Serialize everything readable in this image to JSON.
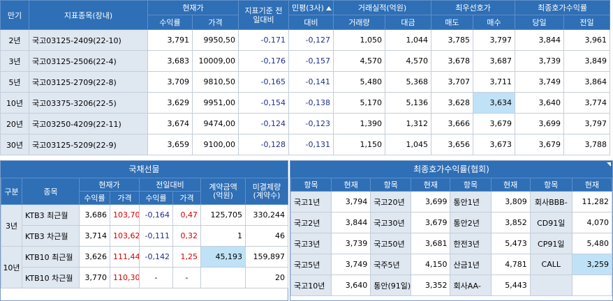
{
  "main_table": {
    "headers": {
      "maturity": "만기",
      "issue": "지표종목(장내)",
      "current": "현재가",
      "yield": "수익률",
      "price": "가격",
      "vs_prev": "지표기준 전일대비",
      "private": "민평(3사)",
      "private_diff": "대비",
      "volume": "거래실적(억원)",
      "vol_qty": "거래량",
      "vol_amt": "대금",
      "best_quote": "최우선호가",
      "sell": "매도",
      "buy": "매수",
      "final_yield": "최종호가수익률",
      "today": "당일",
      "prev_day": "전일"
    },
    "rows": [
      {
        "mat": "2년",
        "name": "국고03125-2409(22-10)",
        "yield": "3,791",
        "price": "9950,50",
        "diff": "-0,171",
        "pdiff": "-0,127",
        "qty": "1,050",
        "amt": "1,044",
        "sell": "3,785",
        "buy": "3,797",
        "today": "3,844",
        "prev": "3,961"
      },
      {
        "mat": "3년",
        "name": "국고03125-2506(22-4)",
        "yield": "3,683",
        "price": "10009,00",
        "diff": "-0,176",
        "pdiff": "-0,157",
        "qty": "4,570",
        "amt": "4,570",
        "sell": "3,678",
        "buy": "3,687",
        "today": "3,739",
        "prev": "3,849"
      },
      {
        "mat": "5년",
        "name": "국고03125-2709(22-8)",
        "yield": "3,709",
        "price": "9810,50",
        "diff": "-0,165",
        "pdiff": "-0,141",
        "qty": "5,480",
        "amt": "5,368",
        "sell": "3,707",
        "buy": "3,711",
        "today": "3,749",
        "prev": "3,864"
      },
      {
        "mat": "10년",
        "name": "국고03375-3206(22-5)",
        "yield": "3,629",
        "price": "9951,00",
        "diff": "-0,154",
        "pdiff": "-0,138",
        "qty": "5,170",
        "amt": "5,136",
        "sell": "3,628",
        "buy": "3,634",
        "today": "3,640",
        "prev": "3,774"
      },
      {
        "mat": "20년",
        "name": "국고03250-4209(22-11)",
        "yield": "3,674",
        "price": "9474,00",
        "diff": "-0,124",
        "pdiff": "-0,123",
        "qty": "1,390",
        "amt": "1,312",
        "sell": "3,666",
        "buy": "3,679",
        "today": "3,699",
        "prev": "3,797"
      },
      {
        "mat": "30년",
        "name": "국고03125-5209(22-9)",
        "yield": "3,659",
        "price": "9100,00",
        "diff": "-0,128",
        "pdiff": "-0,131",
        "qty": "1,150",
        "amt": "1,045",
        "sell": "3,656",
        "buy": "3,673",
        "today": "3,679",
        "prev": "3,788"
      }
    ]
  },
  "futures": {
    "title": "국채선물",
    "headers": {
      "category": "구분",
      "item": "종목",
      "current": "현재가",
      "vs_prev": "전일대비",
      "yield": "수익률",
      "price": "가격",
      "contract": "계약금액 (억원)",
      "open_interest": "미결제량 (계약수)"
    },
    "groups": [
      {
        "cat": "3년",
        "rows": [
          {
            "name": "KTB3 최근월",
            "yield": "3,686",
            "price": "103,70",
            "dy": "-0,164",
            "dp": "0,47",
            "contract": "125,705",
            "oi": "330,244"
          },
          {
            "name": "KTB3 차근월",
            "yield": "3,714",
            "price": "103,62",
            "dy": "-0,111",
            "dp": "0,32",
            "contract": "1",
            "oi": "46"
          }
        ]
      },
      {
        "cat": "10년",
        "rows": [
          {
            "name": "KTB10 최근월",
            "yield": "3,626",
            "price": "111,44",
            "dy": "-0,142",
            "dp": "1,25",
            "contract": "45,193",
            "oi": "159,897"
          },
          {
            "name": "KTB10 차근월",
            "yield": "3,770",
            "price": "110,30",
            "dy": "-",
            "dp": "-",
            "contract": "",
            "oi": "20"
          }
        ]
      }
    ]
  },
  "final_yield": {
    "title": "최종호가수익률(협회)",
    "headers": {
      "item": "항목",
      "current": "현재"
    },
    "rows": [
      [
        {
          "n": "국고1년",
          "v": "3,794"
        },
        {
          "n": "국고20년",
          "v": "3,699"
        },
        {
          "n": "통안1년",
          "v": "3,809"
        },
        {
          "n": "회사BBB-",
          "v": "11,282"
        }
      ],
      [
        {
          "n": "국고2년",
          "v": "3,844"
        },
        {
          "n": "국고30년",
          "v": "3,679"
        },
        {
          "n": "통안2년",
          "v": "3,852"
        },
        {
          "n": "CD91일",
          "v": "4,070"
        }
      ],
      [
        {
          "n": "국고3년",
          "v": "3,739"
        },
        {
          "n": "국고50년",
          "v": "3,681"
        },
        {
          "n": "한전3년",
          "v": "5,473"
        },
        {
          "n": "CP91일",
          "v": "5,480"
        }
      ],
      [
        {
          "n": "국고5년",
          "v": "3,749"
        },
        {
          "n": "국주5년",
          "v": "4,150"
        },
        {
          "n": "산금1년",
          "v": "4,781"
        },
        {
          "n": "CALL",
          "v": "3,259"
        }
      ],
      [
        {
          "n": "국고10년",
          "v": "3,640"
        },
        {
          "n": "통안(91일)",
          "v": "3,352"
        },
        {
          "n": "회사AA-",
          "v": "5,443"
        },
        {
          "n": "",
          "v": ""
        }
      ]
    ]
  },
  "colors": {
    "header_bg": "#2e6fb6",
    "label_bg": "#dfe7f1",
    "negative": "#1e2f8a",
    "positive": "#d20000",
    "highlight": "#bfe2f7"
  }
}
